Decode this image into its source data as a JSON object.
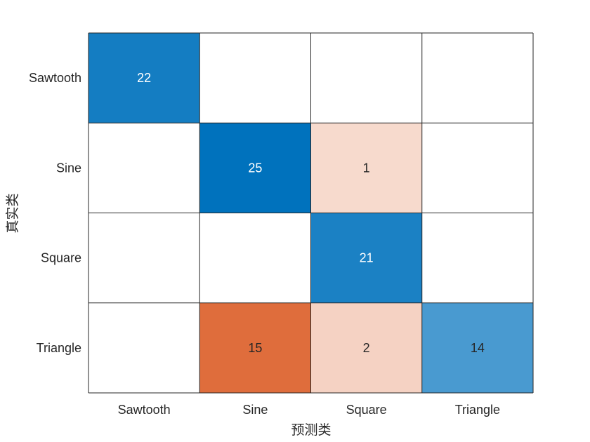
{
  "chart_data": {
    "type": "heatmap",
    "title": "",
    "xlabel": "预测类",
    "ylabel": "真实类",
    "x_categories": [
      "Sawtooth",
      "Sine",
      "Square",
      "Triangle"
    ],
    "y_categories": [
      "Sawtooth",
      "Sine",
      "Square",
      "Triangle"
    ],
    "matrix": [
      [
        22,
        null,
        null,
        null
      ],
      [
        null,
        25,
        1,
        null
      ],
      [
        null,
        null,
        21,
        null
      ],
      [
        null,
        15,
        2,
        14
      ]
    ],
    "colors": {
      "correct_max": "#0072bd",
      "error_max": "#d95319",
      "grid": "#262626",
      "background": "#ffffff"
    },
    "grid": true
  }
}
